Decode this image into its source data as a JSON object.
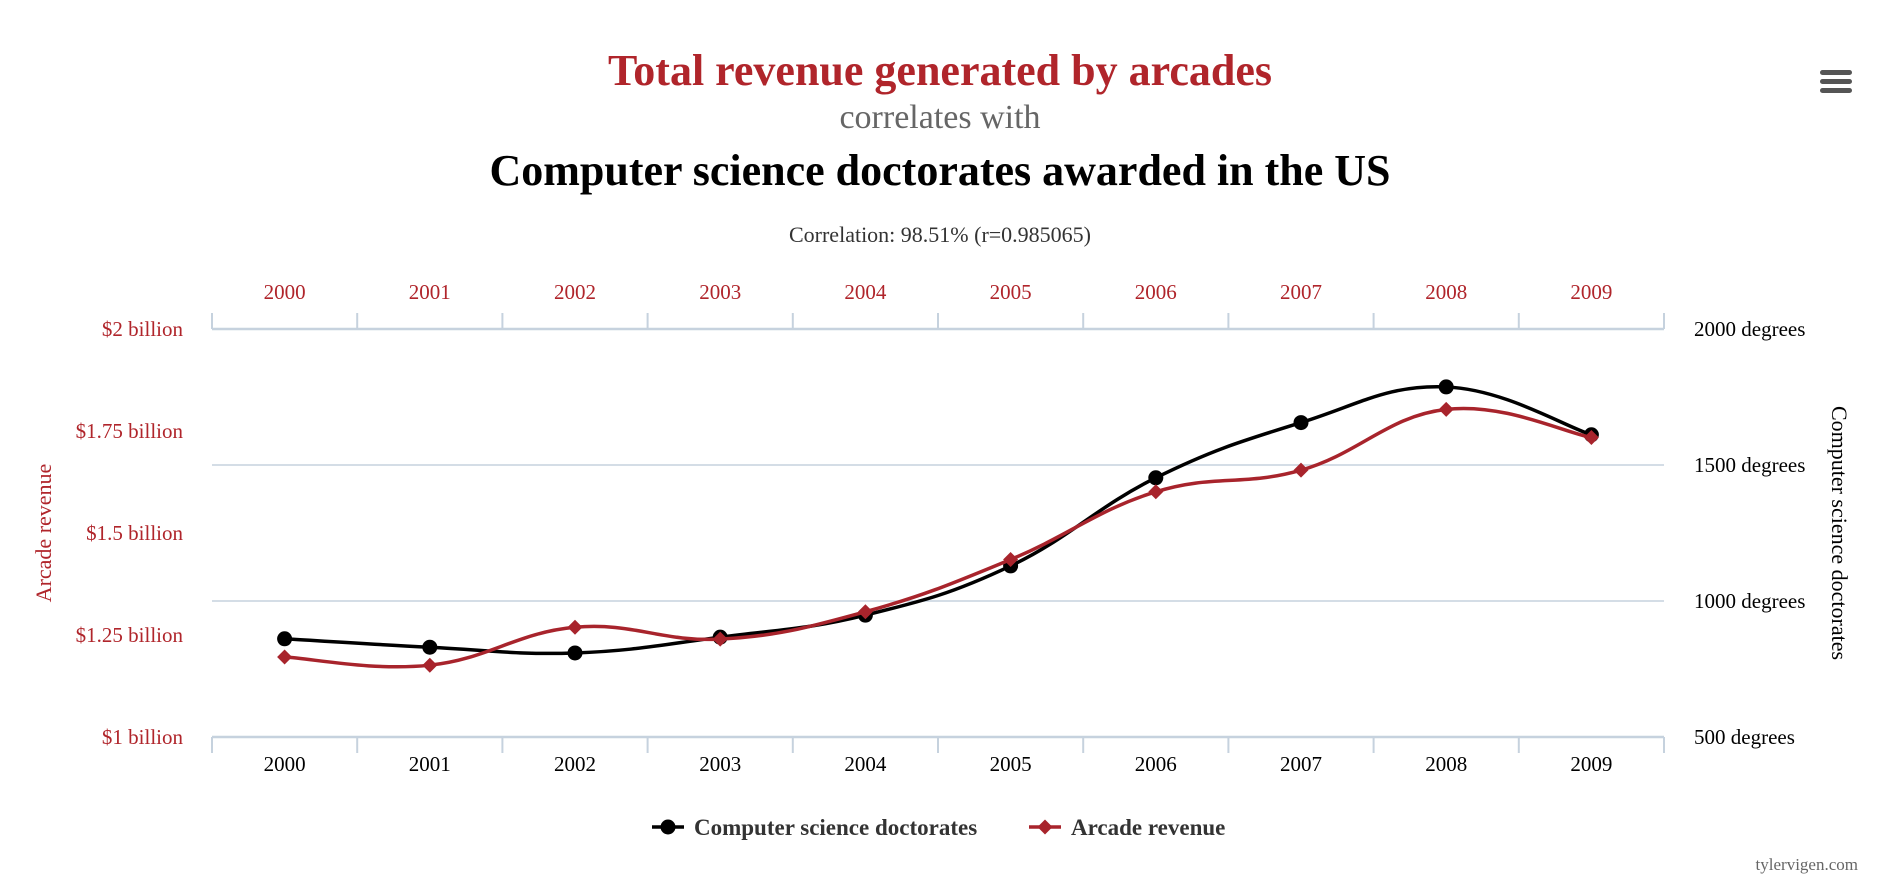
{
  "colors": {
    "title_primary": "#b0252b",
    "subtitle": "#666666",
    "secondary_title": "#000000",
    "series_doctorates": "#000000",
    "series_arcade": "#a8242c",
    "grid": "#c6d2de",
    "axis_text_left": "#b0252b",
    "axis_text_right": "#000000"
  },
  "menu": {
    "icon": "hamburger-menu-icon"
  },
  "watermark": "tylervigen.com",
  "chart_data": {
    "type": "line",
    "title": "Total revenue generated by arcades",
    "subtitle": "correlates with",
    "title2": "Computer science doctorates awarded in the US",
    "correlation_text": "Correlation: 98.51% (r=0.985065)",
    "categories": [
      "2000",
      "2001",
      "2002",
      "2003",
      "2004",
      "2005",
      "2006",
      "2007",
      "2008",
      "2009"
    ],
    "y_left": {
      "label": "Arcade revenue",
      "range": [
        1.0,
        2.0
      ],
      "ticks": [
        {
          "value": 2.0,
          "label": "$2 billion"
        },
        {
          "value": 1.75,
          "label": "$1.75 billion"
        },
        {
          "value": 1.5,
          "label": "$1.5 billion"
        },
        {
          "value": 1.25,
          "label": "$1.25 billion"
        },
        {
          "value": 1.0,
          "label": "$1 billion"
        }
      ]
    },
    "y_right": {
      "label": "Computer science doctorates",
      "range": [
        500,
        2000
      ],
      "ticks": [
        {
          "value": 2000,
          "label": "2000 degrees"
        },
        {
          "value": 1500,
          "label": "1500 degrees"
        },
        {
          "value": 1000,
          "label": "1000 degrees"
        },
        {
          "value": 500,
          "label": "500 degrees"
        }
      ]
    },
    "grid": true,
    "legend_position": "bottom-center",
    "series": [
      {
        "name": "Computer science doctorates",
        "axis": "right",
        "marker": "circle",
        "values": [
          861,
          830,
          809,
          867,
          948,
          1129,
          1453,
          1656,
          1787,
          1611
        ]
      },
      {
        "name": "Arcade revenue",
        "axis": "left",
        "marker": "diamond",
        "values": [
          1.196,
          1.176,
          1.269,
          1.24,
          1.307,
          1.435,
          1.601,
          1.654,
          1.803,
          1.734
        ]
      }
    ]
  }
}
